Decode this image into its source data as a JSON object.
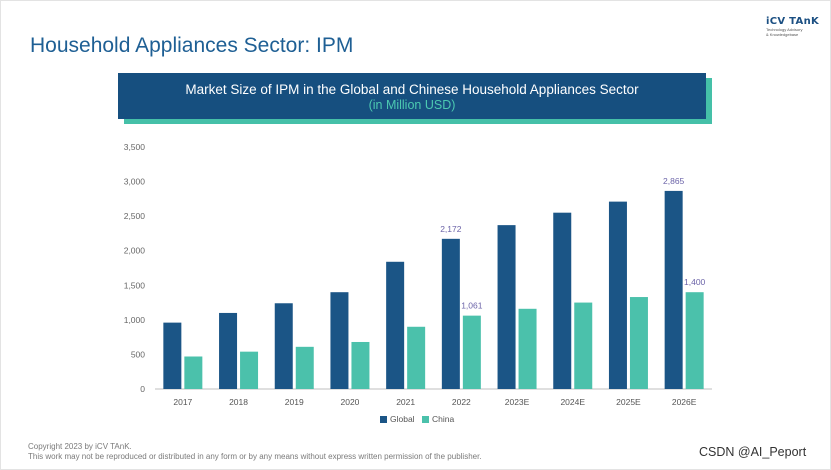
{
  "page": {
    "title": "Household Appliances Sector: IPM",
    "logo": {
      "name": "iCV TAnK",
      "tagline_1": "Technology Advisory",
      "tagline_2": "& Knowledgebase"
    },
    "banner_title": "Market Size of IPM in the Global and Chinese Household Appliances Sector",
    "banner_subtitle": "(in Million USD)",
    "footer_line1": "Copyright  2023 by iCV TAnK.",
    "footer_line2": "This work may not be reproduced or distributed in any form or by any means without express written permission of the publisher.",
    "watermark": "CSDN @AI_Peport"
  },
  "colors": {
    "global": "#1b5586",
    "china": "#4bc1ab",
    "title": "#1e5f94",
    "banner": "#164f7f",
    "banner_accent": "#45c0a8"
  },
  "chart_data": {
    "type": "bar",
    "title": "Market Size of IPM in the Global and Chinese Household Appliances Sector",
    "subtitle": "(in Million USD)",
    "categories": [
      "2017",
      "2018",
      "2019",
      "2020",
      "2021",
      "2022",
      "2023E",
      "2024E",
      "2025E",
      "2026E"
    ],
    "series": [
      {
        "name": "Global",
        "values": [
          960,
          1100,
          1240,
          1400,
          1840,
          2172,
          2370,
          2550,
          2710,
          2865
        ]
      },
      {
        "name": "China",
        "values": [
          470,
          540,
          610,
          680,
          900,
          1061,
          1160,
          1250,
          1330,
          1400
        ]
      }
    ],
    "data_labels": [
      {
        "series": "Global",
        "category": "2022",
        "text": "2,172"
      },
      {
        "series": "China",
        "category": "2022",
        "text": "1,061"
      },
      {
        "series": "Global",
        "category": "2026E",
        "text": "2,865"
      },
      {
        "series": "China",
        "category": "2026E",
        "text": "1,400"
      }
    ],
    "yticks": [
      "0",
      "500",
      "1,000",
      "1,500",
      "2,000",
      "2,500",
      "3,000",
      "3,500"
    ],
    "ylim": [
      0,
      3500
    ],
    "grid": false,
    "legend": "bottom-center"
  }
}
